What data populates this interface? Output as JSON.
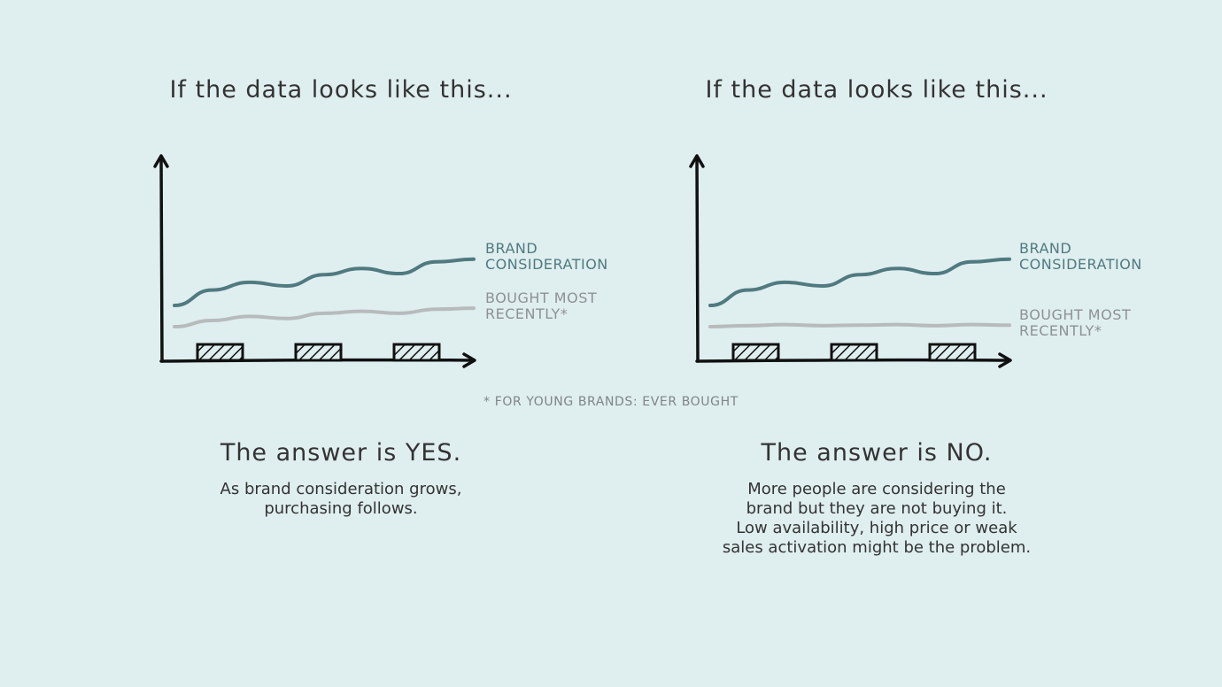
{
  "colors": {
    "background": "#dfeeef",
    "consideration": "#4f7a80",
    "purchase": "#b7bbbc",
    "axis": "#111111",
    "text": "#333333"
  },
  "footnote": "* FOR YOUNG BRANDS: EVER BOUGHT",
  "panels": [
    {
      "heading": "If the data looks like this...",
      "answer": "The answer is YES.",
      "description": [
        "As brand consideration grows,",
        "purchasing follows."
      ],
      "series_labels": {
        "consideration": [
          "BRAND",
          "CONSIDERATION"
        ],
        "purchase": [
          "BOUGHT MOST",
          "RECENTLY*"
        ]
      }
    },
    {
      "heading": "If the data looks like this...",
      "answer": "The answer is NO.",
      "description": [
        "More people are considering the",
        "brand but they are not buying it.",
        "Low availability, high price or weak",
        "sales activation might be the problem."
      ],
      "series_labels": {
        "consideration": [
          "BRAND",
          "CONSIDERATION"
        ],
        "purchase": [
          "BOUGHT MOST",
          "RECENTLY*"
        ]
      }
    }
  ],
  "chart_data": [
    {
      "type": "line",
      "series": [
        {
          "name": "BRAND CONSIDERATION",
          "values": [
            0.0,
            0.3,
            0.45,
            0.38,
            0.6,
            0.72,
            0.62,
            0.85,
            0.9
          ]
        },
        {
          "name": "BOUGHT MOST RECENTLY*",
          "values": [
            0.0,
            0.12,
            0.2,
            0.16,
            0.26,
            0.3,
            0.26,
            0.34,
            0.36
          ]
        }
      ],
      "activation_periods": 3
    },
    {
      "type": "line",
      "series": [
        {
          "name": "BRAND CONSIDERATION",
          "values": [
            0.0,
            0.3,
            0.45,
            0.38,
            0.6,
            0.72,
            0.62,
            0.85,
            0.9
          ]
        },
        {
          "name": "BOUGHT MOST RECENTLY*",
          "values": [
            0.0,
            0.02,
            0.04,
            0.02,
            0.03,
            0.04,
            0.02,
            0.04,
            0.03
          ]
        }
      ],
      "activation_periods": 3
    }
  ]
}
